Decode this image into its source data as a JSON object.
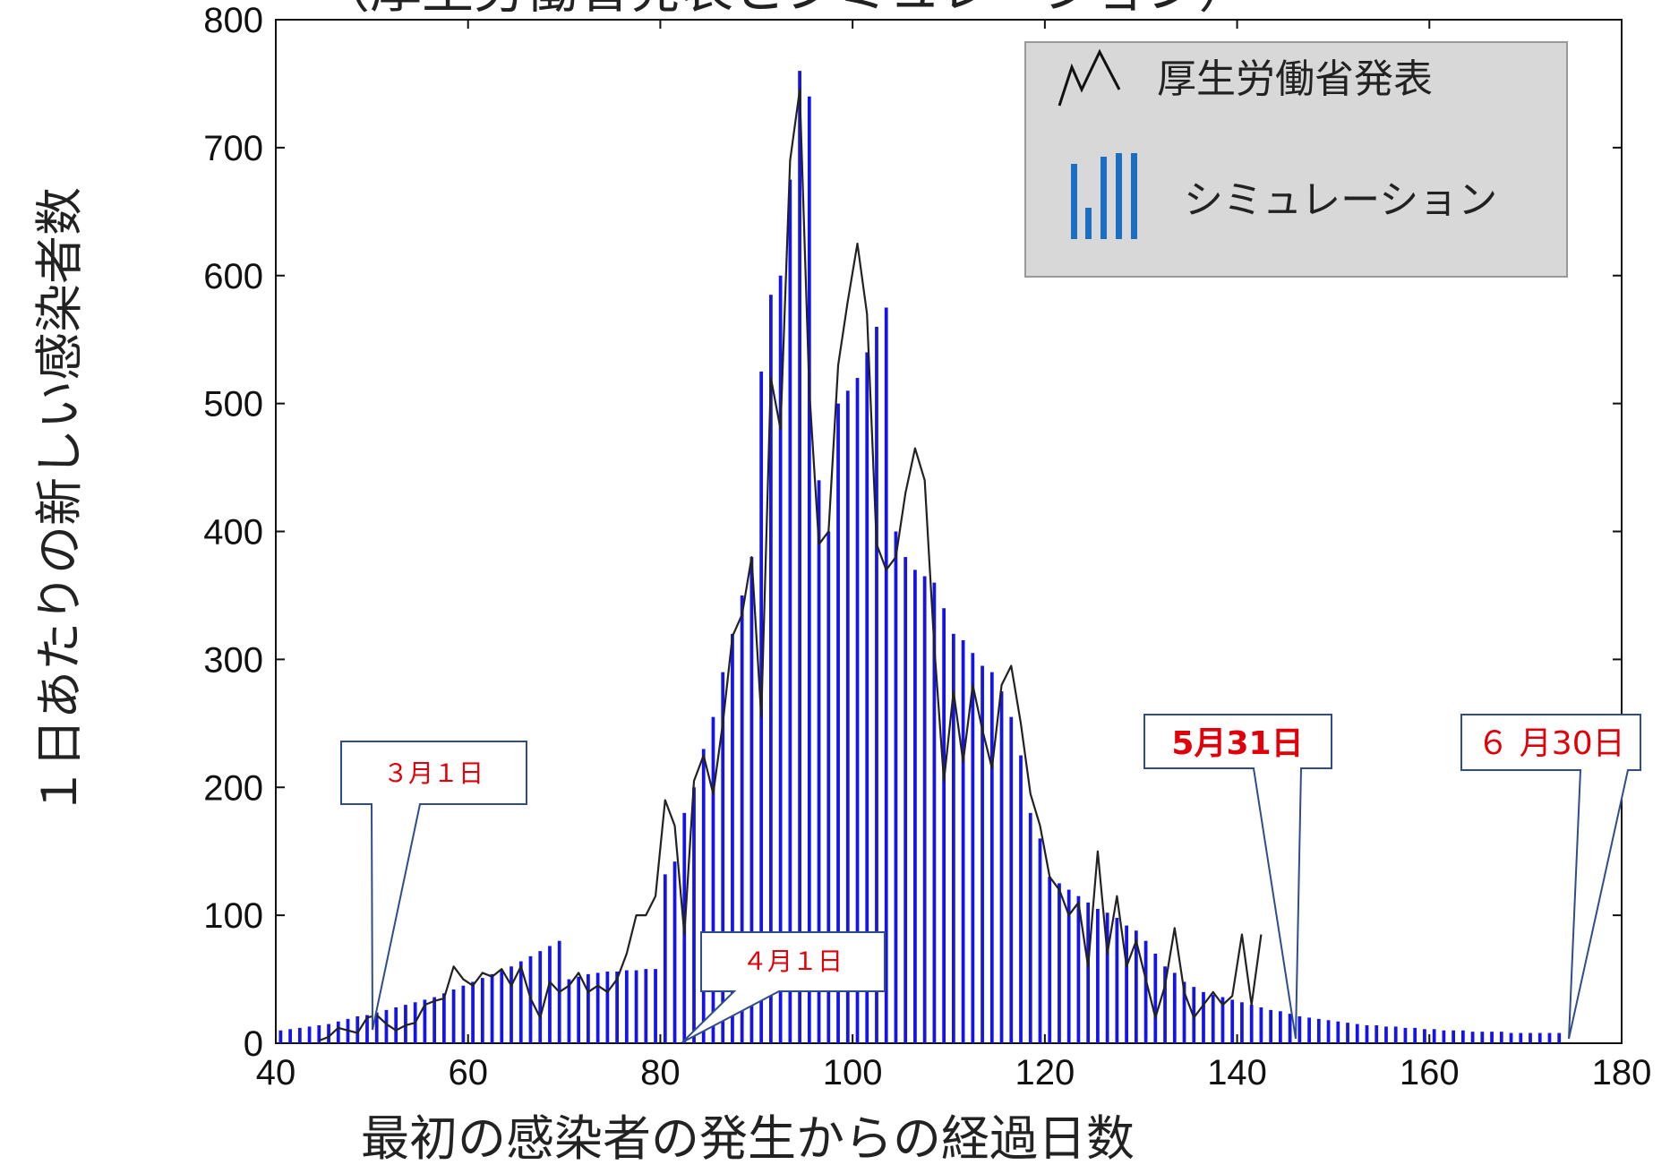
{
  "header": {
    "partial_title": "（厚生労働省発表とシミュレーション）"
  },
  "chart_data": {
    "type": "bar",
    "title": "",
    "xlabel": "最初の感染者の発生からの経過日数",
    "ylabel": "１日あたりの新しい感染者数",
    "xlim": [
      40,
      180
    ],
    "ylim": [
      0,
      800
    ],
    "xticks": [
      40,
      60,
      80,
      100,
      120,
      140,
      160,
      180
    ],
    "yticks": [
      0,
      100,
      200,
      300,
      400,
      500,
      600,
      700,
      800
    ],
    "grid": false,
    "legend_position": "top-right",
    "colors": {
      "simulation": "#1414e6",
      "reported": "#222222",
      "legend_bars": "#1a6fc2",
      "callout_border": "#2f4d8a",
      "callout_text": "#e0000a"
    },
    "series": [
      {
        "name": "シミュレーション",
        "type": "bar",
        "x": [
          40,
          41,
          42,
          43,
          44,
          45,
          46,
          47,
          48,
          49,
          50,
          51,
          52,
          53,
          54,
          55,
          56,
          57,
          58,
          59,
          60,
          61,
          62,
          63,
          64,
          65,
          66,
          67,
          68,
          69,
          70,
          71,
          72,
          73,
          74,
          75,
          76,
          77,
          78,
          79,
          80,
          81,
          82,
          83,
          84,
          85,
          86,
          87,
          88,
          89,
          90,
          91,
          92,
          93,
          94,
          95,
          96,
          97,
          98,
          99,
          100,
          101,
          102,
          103,
          104,
          105,
          106,
          107,
          108,
          109,
          110,
          111,
          112,
          113,
          114,
          115,
          116,
          117,
          118,
          119,
          120,
          121,
          122,
          123,
          124,
          125,
          126,
          127,
          128,
          129,
          130,
          131,
          132,
          133,
          134,
          135,
          136,
          137,
          138,
          139,
          140,
          141,
          142,
          143,
          144,
          145,
          146,
          147,
          148,
          149,
          150,
          151,
          152,
          153,
          154,
          155,
          156,
          157,
          158,
          159,
          160,
          161,
          162,
          163,
          164,
          165,
          166,
          167,
          168,
          169,
          170,
          171,
          172,
          173
        ],
        "values": [
          10,
          11,
          12,
          13,
          14,
          15,
          17,
          19,
          21,
          22,
          24,
          26,
          28,
          30,
          32,
          34,
          36,
          39,
          42,
          45,
          48,
          51,
          54,
          57,
          60,
          64,
          68,
          72,
          76,
          80,
          50,
          52,
          54,
          55,
          56,
          56,
          57,
          57,
          58,
          58,
          132,
          142,
          180,
          200,
          230,
          255,
          290,
          320,
          350,
          380,
          525,
          585,
          600,
          675,
          760,
          740,
          440,
          400,
          500,
          510,
          520,
          540,
          560,
          575,
          400,
          380,
          370,
          365,
          360,
          340,
          320,
          315,
          305,
          295,
          290,
          275,
          255,
          225,
          180,
          160,
          130,
          125,
          120,
          115,
          110,
          105,
          102,
          98,
          92,
          88,
          80,
          70,
          60,
          55,
          48,
          44,
          40,
          38,
          36,
          34,
          32,
          30,
          28,
          26,
          25,
          23,
          21,
          20,
          19,
          18,
          17,
          16,
          15,
          14,
          14,
          13,
          13,
          12,
          12,
          11,
          11,
          10,
          10,
          10,
          9,
          9,
          9,
          9,
          8,
          8,
          8,
          8,
          8,
          8
        ]
      },
      {
        "name": "厚生労働省発表",
        "type": "line",
        "x": [
          44,
          45,
          46,
          47,
          48,
          49,
          50,
          51,
          52,
          53,
          54,
          55,
          56,
          57,
          58,
          59,
          60,
          61,
          62,
          63,
          64,
          65,
          66,
          67,
          68,
          69,
          70,
          71,
          72,
          73,
          74,
          75,
          76,
          77,
          78,
          79,
          80,
          81,
          82,
          83,
          84,
          85,
          86,
          87,
          88,
          89,
          90,
          91,
          92,
          93,
          94,
          95,
          96,
          97,
          98,
          99,
          100,
          101,
          102,
          103,
          104,
          105,
          106,
          107,
          108,
          109,
          110,
          111,
          112,
          113,
          114,
          115,
          116,
          117,
          118,
          119,
          120,
          121,
          122,
          123,
          124,
          125,
          126,
          127,
          128,
          129,
          130,
          131,
          132,
          133,
          134,
          135,
          136,
          137,
          138,
          139,
          140,
          141,
          142
        ],
        "values": [
          2,
          5,
          12,
          10,
          8,
          20,
          22,
          15,
          10,
          14,
          16,
          30,
          33,
          35,
          60,
          50,
          45,
          55,
          52,
          58,
          45,
          60,
          35,
          20,
          48,
          40,
          45,
          55,
          40,
          45,
          40,
          50,
          70,
          100,
          100,
          115,
          190,
          170,
          85,
          205,
          225,
          195,
          250,
          318,
          335,
          380,
          255,
          520,
          480,
          690,
          745,
          510,
          390,
          400,
          530,
          580,
          625,
          570,
          390,
          370,
          380,
          430,
          465,
          440,
          310,
          205,
          275,
          220,
          280,
          245,
          215,
          280,
          295,
          250,
          195,
          170,
          130,
          120,
          100,
          110,
          60,
          150,
          70,
          115,
          60,
          80,
          50,
          20,
          45,
          90,
          40,
          20,
          30,
          40,
          30,
          37,
          85,
          30,
          85
        ]
      }
    ],
    "legend": [
      {
        "label": "厚生労働省発表",
        "marker": "line"
      },
      {
        "label": "シミュレーション",
        "marker": "bars"
      }
    ],
    "annotations": [
      {
        "text": "３月１日",
        "x": 49,
        "y": 5
      },
      {
        "text": "４月１日",
        "x": 81,
        "y": 0
      },
      {
        "text": "5月31日",
        "x": 145,
        "y": 5
      },
      {
        "text": "６ 月30日",
        "x": 174,
        "y": 2
      }
    ]
  }
}
